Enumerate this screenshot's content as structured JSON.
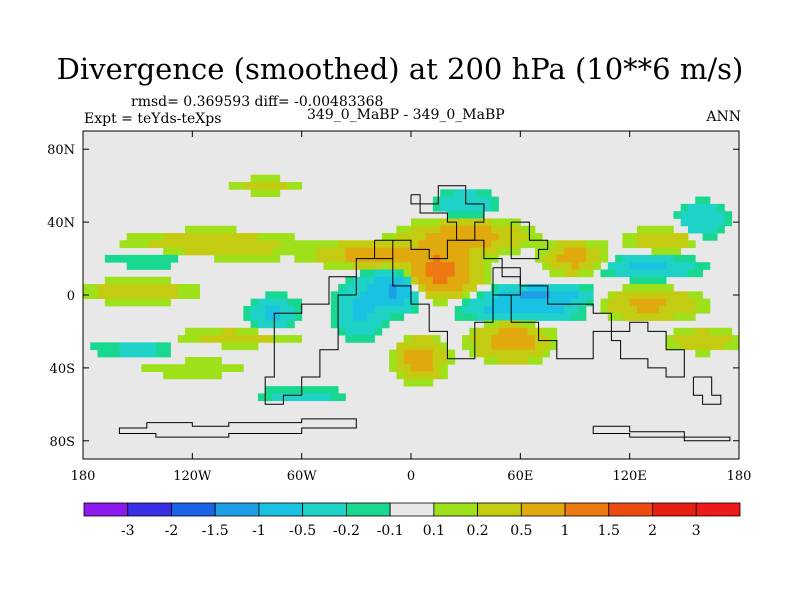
{
  "title": "Divergence (smoothed) at 200 hPa (10**6 m/s)",
  "stats_line": "rmsd= 0.369593 diff= -0.00483368",
  "experiment_line": "Expt = teYds-teXps",
  "case_line": "349_0_MaBP - 349_0_MaBP",
  "season": "ANN",
  "chart_data": {
    "type": "heatmap",
    "projection": "cylindrical-equidistant",
    "title": "Divergence (smoothed) at 200 hPa (10**6 m/s)",
    "xlabel": "",
    "ylabel": "",
    "xlim": [
      -180,
      180
    ],
    "ylim": [
      -90,
      90
    ],
    "x_ticks": [
      {
        "value": -180,
        "label": "180"
      },
      {
        "value": -120,
        "label": "120W"
      },
      {
        "value": -60,
        "label": "60W"
      },
      {
        "value": 0,
        "label": "0"
      },
      {
        "value": 60,
        "label": "60E"
      },
      {
        "value": 120,
        "label": "120E"
      },
      {
        "value": 180,
        "label": "180"
      }
    ],
    "y_ticks": [
      {
        "value": 80,
        "label": "80N"
      },
      {
        "value": 40,
        "label": "40N"
      },
      {
        "value": 0,
        "label": "0"
      },
      {
        "value": -40,
        "label": "40S"
      },
      {
        "value": -80,
        "label": "80S"
      }
    ],
    "colorbar": {
      "levels": [
        "-3",
        "-2",
        "-1.5",
        "-1",
        "-0.5",
        "-0.2",
        "-0.1",
        "0.1",
        "0.2",
        "0.5",
        "1",
        "1.5",
        "2",
        "3"
      ],
      "colors": [
        "#8c1aee",
        "#3a2ee6",
        "#1c64e6",
        "#1e9ee6",
        "#19c2e2",
        "#1ed2c8",
        "#18d890",
        "#e8e8e8",
        "#9ee01a",
        "#c4cc12",
        "#e0aa0e",
        "#ec7a10",
        "#ec4c12",
        "#e61e12",
        "#ee1a1a"
      ]
    },
    "features": [
      {
        "lon": -110,
        "lat": 27,
        "rlon": 45,
        "rlat": 8,
        "value": 0.4
      },
      {
        "lon": -150,
        "lat": 2,
        "rlon": 30,
        "rlat": 6,
        "value": 0.4
      },
      {
        "lon": -95,
        "lat": -23,
        "rlon": 35,
        "rlat": 5,
        "value": 0.3
      },
      {
        "lon": -120,
        "lat": -40,
        "rlon": 35,
        "rlat": 6,
        "value": 0.2
      },
      {
        "lon": -75,
        "lat": -10,
        "rlon": 12,
        "rlat": 8,
        "value": -0.6
      },
      {
        "lon": -20,
        "lat": 22,
        "rlon": 25,
        "rlat": 6,
        "value": 0.8
      },
      {
        "lon": 15,
        "lat": 12,
        "rlon": 18,
        "rlat": 12,
        "value": 1.3
      },
      {
        "lon": 30,
        "lat": 32,
        "rlon": 28,
        "rlat": 8,
        "value": 0.8
      },
      {
        "lon": -8,
        "lat": 3,
        "rlon": 12,
        "rlat": 10,
        "value": -1.2
      },
      {
        "lon": -28,
        "lat": -8,
        "rlon": 12,
        "rlat": 15,
        "value": -0.6
      },
      {
        "lon": 5,
        "lat": -35,
        "rlon": 12,
        "rlat": 10,
        "value": 0.8
      },
      {
        "lon": 60,
        "lat": -8,
        "rlon": 30,
        "rlat": 6,
        "value": -0.8
      },
      {
        "lon": 70,
        "lat": 0,
        "rlon": 25,
        "rlat": 5,
        "value": -1.0
      },
      {
        "lon": 55,
        "lat": -25,
        "rlon": 18,
        "rlat": 10,
        "value": 0.8
      },
      {
        "lon": 130,
        "lat": -5,
        "rlon": 25,
        "rlat": 8,
        "value": 0.6
      },
      {
        "lon": 130,
        "lat": 15,
        "rlon": 25,
        "rlat": 6,
        "value": -0.6
      },
      {
        "lon": 160,
        "lat": 40,
        "rlon": 12,
        "rlat": 10,
        "value": -0.5
      },
      {
        "lon": 140,
        "lat": 30,
        "rlon": 20,
        "rlat": 6,
        "value": 0.5
      },
      {
        "lon": 30,
        "lat": 50,
        "rlon": 15,
        "rlat": 7,
        "value": -0.5
      },
      {
        "lon": -140,
        "lat": 20,
        "rlon": 30,
        "rlat": 5,
        "value": -0.3
      },
      {
        "lon": 160,
        "lat": -25,
        "rlon": 18,
        "rlat": 6,
        "value": 0.4
      },
      {
        "lon": -150,
        "lat": -30,
        "rlon": 25,
        "rlat": 5,
        "value": -0.3
      },
      {
        "lon": -80,
        "lat": 60,
        "rlon": 20,
        "rlat": 4,
        "value": 0.3
      },
      {
        "lon": -60,
        "lat": -55,
        "rlon": 25,
        "rlat": 4,
        "value": -0.3
      },
      {
        "lon": 90,
        "lat": 20,
        "rlon": 15,
        "rlat": 8,
        "value": 0.7
      }
    ]
  }
}
